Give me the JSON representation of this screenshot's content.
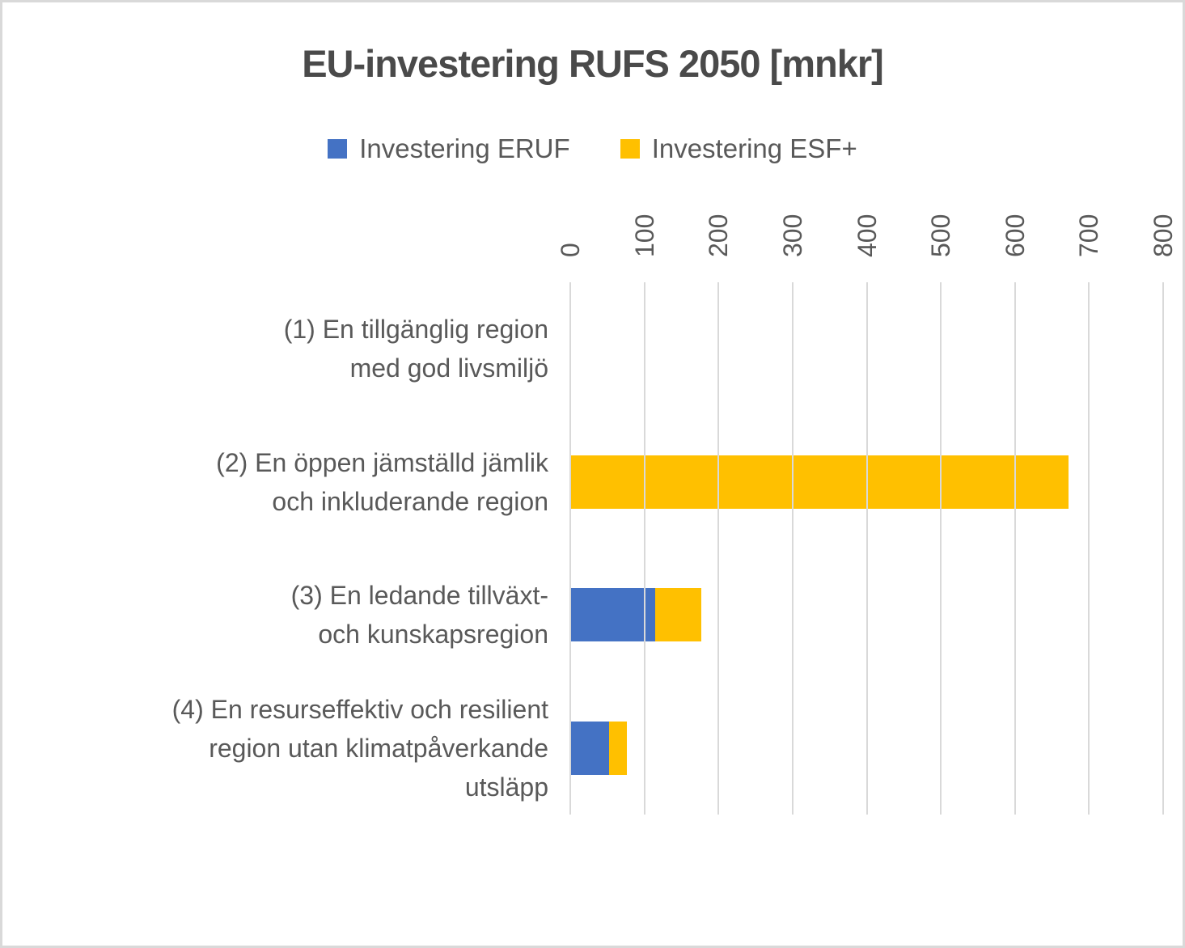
{
  "title": "EU-investering RUFS 2050 [mnkr]",
  "legend": {
    "items": [
      {
        "label": "Investering ERUF",
        "color": "#4472C4"
      },
      {
        "label": "Investering ESF+",
        "color": "#FFC000"
      }
    ]
  },
  "chart_data": {
    "type": "bar",
    "orientation": "horizontal",
    "stacked": true,
    "title": "EU-investering RUFS 2050 [mnkr]",
    "value_unit": "mnkr",
    "categories": [
      "(1) En tillgänglig region med god livsmiljö",
      "(2) En öppen jämställd jämlik och inkluderande region",
      "(3) En ledande tillväxt- och kunskapsregion",
      "(4) En resurseffektiv och resilient region utan klimatpåverkande utsläpp"
    ],
    "category_label_lines": [
      [
        "(1) En tillgänglig region",
        "med god livsmiljö"
      ],
      [
        "(2) En öppen jämställd jämlik",
        "och inkluderande region"
      ],
      [
        "(3) En ledande tillväxt-",
        "och kunskapsregion"
      ],
      [
        "(4) En resurseffektiv och resilient",
        "region utan klimatpåverkande",
        "utsläpp"
      ]
    ],
    "series": [
      {
        "name": "Investering ERUF",
        "key": "eruf",
        "color": "#4472C4",
        "values": [
          0,
          0,
          115,
          52
        ]
      },
      {
        "name": "Investering ESF+",
        "key": "esf",
        "color": "#FFC000",
        "values": [
          0,
          672,
          62,
          24
        ]
      }
    ],
    "xlim": [
      0,
      800
    ],
    "xticks": [
      0,
      100,
      200,
      300,
      400,
      500,
      600,
      700,
      800
    ],
    "tick_label_rotation_deg": 90,
    "grid": "vertical",
    "legend_position": "top",
    "gridline_color": "#D9D9D9",
    "text_color": "#595959"
  }
}
